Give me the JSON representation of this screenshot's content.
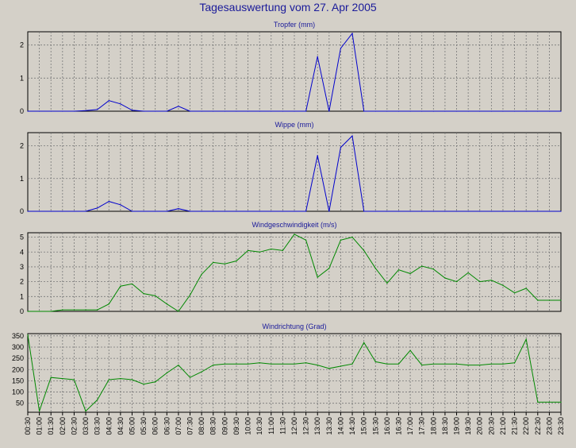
{
  "page_title": "Tagesauswertung vom 27. Apr 2005",
  "colors": {
    "blue_series": "#0000cc",
    "green_series": "#008800",
    "background": "#d4d0c8",
    "title": "#1a1a9a"
  },
  "x_labels": [
    "00:30",
    "01:00",
    "01:30",
    "02:00",
    "02:30",
    "03:00",
    "03:30",
    "04:00",
    "04:30",
    "05:00",
    "05:30",
    "06:00",
    "06:30",
    "07:00",
    "07:30",
    "08:00",
    "08:30",
    "09:00",
    "09:30",
    "10:00",
    "10:30",
    "11:00",
    "11:30",
    "12:00",
    "12:30",
    "13:00",
    "13:30",
    "14:00",
    "14:30",
    "15:00",
    "15:30",
    "16:00",
    "16:30",
    "17:00",
    "17:30",
    "18:00",
    "18:30",
    "19:00",
    "19:30",
    "20:00",
    "20:30",
    "21:00",
    "21:30",
    "22:00",
    "22:30",
    "23:00",
    "23:30"
  ],
  "chart_data": [
    {
      "type": "line",
      "title": "Tropfer (mm)",
      "ylim": [
        0,
        2.4
      ],
      "yticks": [
        0,
        1,
        2
      ],
      "grid": true,
      "series": [
        {
          "color": "#0000cc",
          "values": [
            0,
            0,
            0,
            0,
            0,
            0.02,
            0.05,
            0.32,
            0.22,
            0.03,
            0,
            0,
            0,
            0.15,
            0,
            0,
            0,
            0,
            0,
            0,
            0,
            0,
            0,
            0,
            0,
            1.65,
            0,
            1.9,
            2.35,
            0,
            0,
            0,
            0,
            0,
            0,
            0,
            0,
            0,
            0,
            0,
            0,
            0,
            0,
            0,
            0,
            0,
            0
          ]
        }
      ]
    },
    {
      "type": "line",
      "title": "Wippe (mm)",
      "ylim": [
        0,
        2.4
      ],
      "yticks": [
        0,
        1,
        2
      ],
      "grid": true,
      "series": [
        {
          "color": "#0000cc",
          "values": [
            0,
            0,
            0,
            0,
            0,
            0,
            0.1,
            0.3,
            0.2,
            0,
            0,
            0,
            0,
            0.08,
            0,
            0,
            0,
            0,
            0,
            0,
            0,
            0,
            0,
            0,
            0,
            1.7,
            0,
            1.95,
            2.3,
            0,
            0,
            0,
            0,
            0,
            0,
            0,
            0,
            0,
            0,
            0,
            0,
            0,
            0,
            0,
            0,
            0,
            0
          ]
        }
      ]
    },
    {
      "type": "line",
      "title": "Windgeschwindigkeit (m/s)",
      "ylim": [
        0,
        5.3
      ],
      "yticks": [
        0,
        1,
        2,
        3,
        4,
        5
      ],
      "grid": true,
      "series": [
        {
          "color": "#008800",
          "values": [
            0,
            0,
            0,
            0.1,
            0.1,
            0.1,
            0.1,
            0.5,
            1.7,
            1.85,
            1.2,
            1.05,
            0.5,
            0,
            1.1,
            2.5,
            3.3,
            3.2,
            3.4,
            4.1,
            4.0,
            4.2,
            4.1,
            5.2,
            4.8,
            2.3,
            2.9,
            4.8,
            5.0,
            4.1,
            2.9,
            1.9,
            2.8,
            2.55,
            3.05,
            2.85,
            2.25,
            2.0,
            2.6,
            2.0,
            2.1,
            1.75,
            1.25,
            1.55,
            0.75,
            0.75,
            0.75
          ]
        }
      ]
    },
    {
      "type": "line",
      "title": "Windrichtung (Grad)",
      "ylim": [
        10,
        360
      ],
      "yticks": [
        50,
        100,
        150,
        200,
        250,
        300,
        350
      ],
      "grid": true,
      "series": [
        {
          "color": "#008800",
          "values": [
            355,
            15,
            165,
            160,
            155,
            15,
            65,
            155,
            160,
            155,
            135,
            145,
            185,
            220,
            165,
            190,
            220,
            225,
            225,
            225,
            230,
            225,
            225,
            225,
            230,
            220,
            205,
            215,
            225,
            320,
            235,
            225,
            225,
            285,
            220,
            225,
            225,
            225,
            220,
            220,
            225,
            225,
            230,
            335,
            55,
            55,
            55
          ]
        }
      ]
    }
  ]
}
